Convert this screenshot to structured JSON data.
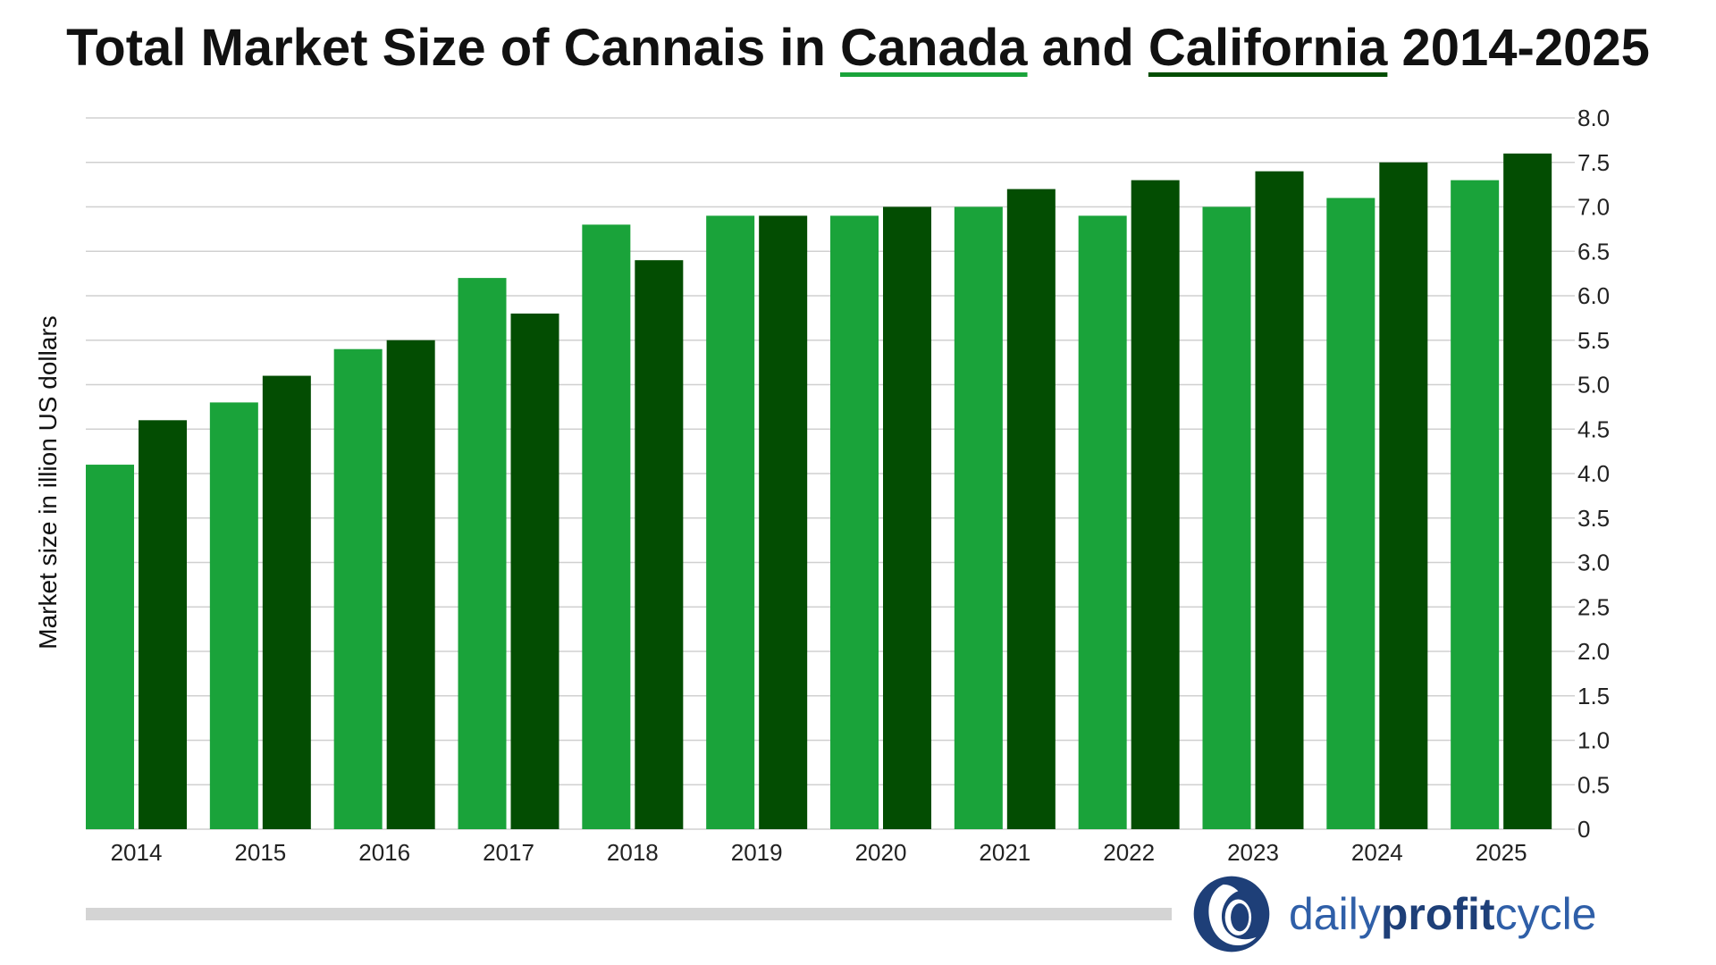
{
  "chart_data": {
    "type": "bar",
    "title_parts": {
      "before": "Total Market Size of Cannais in ",
      "canada": "Canada",
      "middle": " and ",
      "california": "California",
      "after": " 2014-2025"
    },
    "ylabel": "Market size in illion US dollars",
    "xlabel": "",
    "categories": [
      "2014",
      "2015",
      "2016",
      "2017",
      "2018",
      "2019",
      "2020",
      "2021",
      "2022",
      "2023",
      "2024",
      "2025"
    ],
    "series": [
      {
        "name": "Canada",
        "color": "#1aa33a",
        "values": [
          4.1,
          4.8,
          5.4,
          6.2,
          6.8,
          6.9,
          6.9,
          7.0,
          6.9,
          7.0,
          7.1,
          7.3
        ]
      },
      {
        "name": "California",
        "color": "#034d02",
        "values": [
          4.6,
          5.1,
          5.5,
          5.8,
          6.4,
          6.9,
          7.0,
          7.2,
          7.3,
          7.4,
          7.5,
          7.6
        ]
      }
    ],
    "ylim": [
      0,
      8
    ],
    "yticks": [
      "0",
      "0.5",
      "1.0",
      "1.5",
      "2.0",
      "2.5",
      "3.0",
      "3.5",
      "4.0",
      "4.5",
      "5.0",
      "5.5",
      "6.0",
      "6.5",
      "7.0",
      "7.5",
      "8.0"
    ],
    "y_axis_side": "right",
    "grid": true,
    "legend": "none"
  },
  "branding": {
    "part1": "daily",
    "part2": "profit",
    "part3": "cycle",
    "logo_icon": "circle-swoosh-logo-icon"
  }
}
